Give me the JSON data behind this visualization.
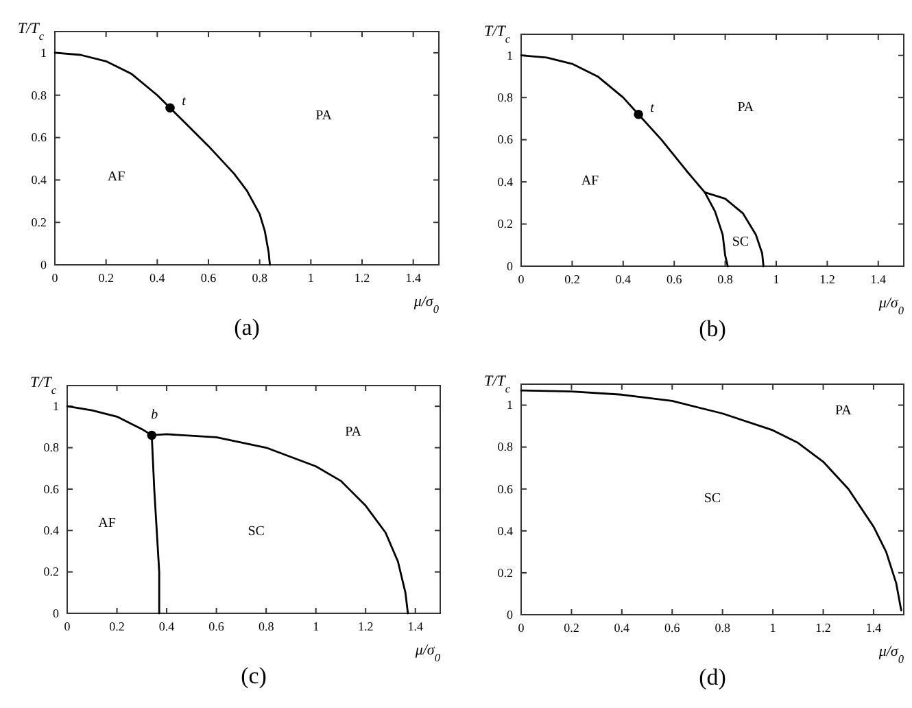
{
  "chart_data": [
    {
      "type": "line",
      "title": "(a)",
      "xlabel": "μ/σ$_{0}$",
      "ylabel": "T/T$_{c}$",
      "xlim": [
        0,
        1.5
      ],
      "ylim": [
        0,
        1.1
      ],
      "xticks": [
        0,
        0.2,
        0.4,
        0.6,
        0.8,
        1,
        1.2,
        1.4
      ],
      "yticks": [
        0,
        0.2,
        0.4,
        0.6,
        0.8,
        1
      ],
      "grid": false,
      "series": [
        {
          "type": "line",
          "color": "#000000",
          "x": [
            0,
            0.1,
            0.2,
            0.3,
            0.4,
            0.45
          ],
          "values": [
            1,
            0.99,
            0.96,
            0.9,
            0.8,
            0.74
          ]
        },
        {
          "type": "line",
          "color": "#000000",
          "x": [
            0.45,
            0.5,
            0.6,
            0.7,
            0.75,
            0.8,
            0.82,
            0.835,
            0.84
          ],
          "values": [
            0.74,
            0.68,
            0.56,
            0.43,
            0.35,
            0.24,
            0.16,
            0.06,
            0
          ]
        },
        {
          "type": "scatter",
          "marker": "circle",
          "color": "#000000",
          "x": [
            0.45
          ],
          "values": [
            0.74
          ]
        }
      ],
      "annotations": [
        {
          "text": "t",
          "x": 0.45,
          "y": 0.74
        },
        "PA",
        "AF"
      ]
    },
    {
      "type": "line",
      "title": "(b)",
      "xlabel": "μ/σ$_{0}$",
      "ylabel": "T/T$_{c}$",
      "xlim": [
        0,
        1.5
      ],
      "ylim": [
        0,
        1.1
      ],
      "xticks": [
        0,
        0.2,
        0.4,
        0.6,
        0.8,
        1,
        1.2,
        1.4
      ],
      "yticks": [
        0,
        0.2,
        0.4,
        0.6,
        0.8,
        1
      ],
      "grid": false,
      "series": [
        {
          "type": "line",
          "color": "#000000",
          "x": [
            0,
            0.1,
            0.2,
            0.3,
            0.4,
            0.46
          ],
          "values": [
            1,
            0.99,
            0.96,
            0.9,
            0.8,
            0.72
          ]
        },
        {
          "type": "line",
          "color": "#000000",
          "x": [
            0.46,
            0.55,
            0.65,
            0.72,
            0.76,
            0.79,
            0.8,
            0.81
          ],
          "values": [
            0.72,
            0.6,
            0.45,
            0.35,
            0.26,
            0.15,
            0.05,
            0
          ]
        },
        {
          "type": "line",
          "color": "#000000",
          "x": [
            0.72,
            0.8,
            0.87,
            0.92,
            0.945,
            0.95
          ],
          "values": [
            0.35,
            0.32,
            0.25,
            0.15,
            0.06,
            0
          ]
        },
        {
          "type": "scatter",
          "marker": "circle",
          "color": "#000000",
          "x": [
            0.46
          ],
          "values": [
            0.72
          ]
        }
      ],
      "annotations": [
        {
          "text": "t",
          "x": 0.46,
          "y": 0.72
        },
        "PA",
        "AF",
        "SC"
      ]
    },
    {
      "type": "line",
      "title": "(c)",
      "xlabel": "μ/σ$_{0}$",
      "ylabel": "T/T$_{c}$",
      "xlim": [
        0,
        1.5
      ],
      "ylim": [
        0,
        1.1
      ],
      "xticks": [
        0,
        0.2,
        0.4,
        0.6,
        0.8,
        1,
        1.2,
        1.4
      ],
      "yticks": [
        0,
        0.2,
        0.4,
        0.6,
        0.8,
        1
      ],
      "grid": false,
      "series": [
        {
          "type": "line",
          "color": "#000000",
          "x": [
            0,
            0.1,
            0.2,
            0.3,
            0.34
          ],
          "values": [
            1,
            0.98,
            0.95,
            0.89,
            0.86
          ]
        },
        {
          "type": "line",
          "color": "#000000",
          "x": [
            0.34,
            0.4,
            0.6,
            0.8,
            1,
            1.1,
            1.2,
            1.28,
            1.33,
            1.36,
            1.37
          ],
          "values": [
            0.86,
            0.865,
            0.85,
            0.8,
            0.71,
            0.64,
            0.52,
            0.39,
            0.25,
            0.1,
            0
          ]
        },
        {
          "type": "line",
          "color": "#000000",
          "x": [
            0.34,
            0.35,
            0.36,
            0.37,
            0.37
          ],
          "values": [
            0.86,
            0.6,
            0.4,
            0.2,
            0
          ]
        },
        {
          "type": "scatter",
          "marker": "circle",
          "color": "#000000",
          "x": [
            0.34
          ],
          "values": [
            0.86
          ]
        }
      ],
      "annotations": [
        {
          "text": "b",
          "x": 0.34,
          "y": 0.86
        },
        "PA",
        "AF",
        "SC"
      ]
    },
    {
      "type": "line",
      "title": "(d)",
      "xlabel": "μ/σ$_{0}$",
      "ylabel": "T/T$_{c}$",
      "xlim": [
        0,
        1.52
      ],
      "ylim": [
        0,
        1.1
      ],
      "xticks": [
        0,
        0.2,
        0.4,
        0.6,
        0.8,
        1,
        1.2,
        1.4
      ],
      "yticks": [
        0,
        0.2,
        0.4,
        0.6,
        0.8,
        1
      ],
      "grid": false,
      "series": [
        {
          "type": "line",
          "color": "#000000",
          "x": [
            0,
            0.2,
            0.4,
            0.6,
            0.8,
            1,
            1.1,
            1.2,
            1.3,
            1.4,
            1.45,
            1.49,
            1.51
          ],
          "values": [
            1.07,
            1.065,
            1.05,
            1.02,
            0.96,
            0.88,
            0.82,
            0.73,
            0.6,
            0.42,
            0.3,
            0.15,
            0.02
          ]
        }
      ],
      "annotations": [
        "PA",
        "SC"
      ]
    }
  ]
}
